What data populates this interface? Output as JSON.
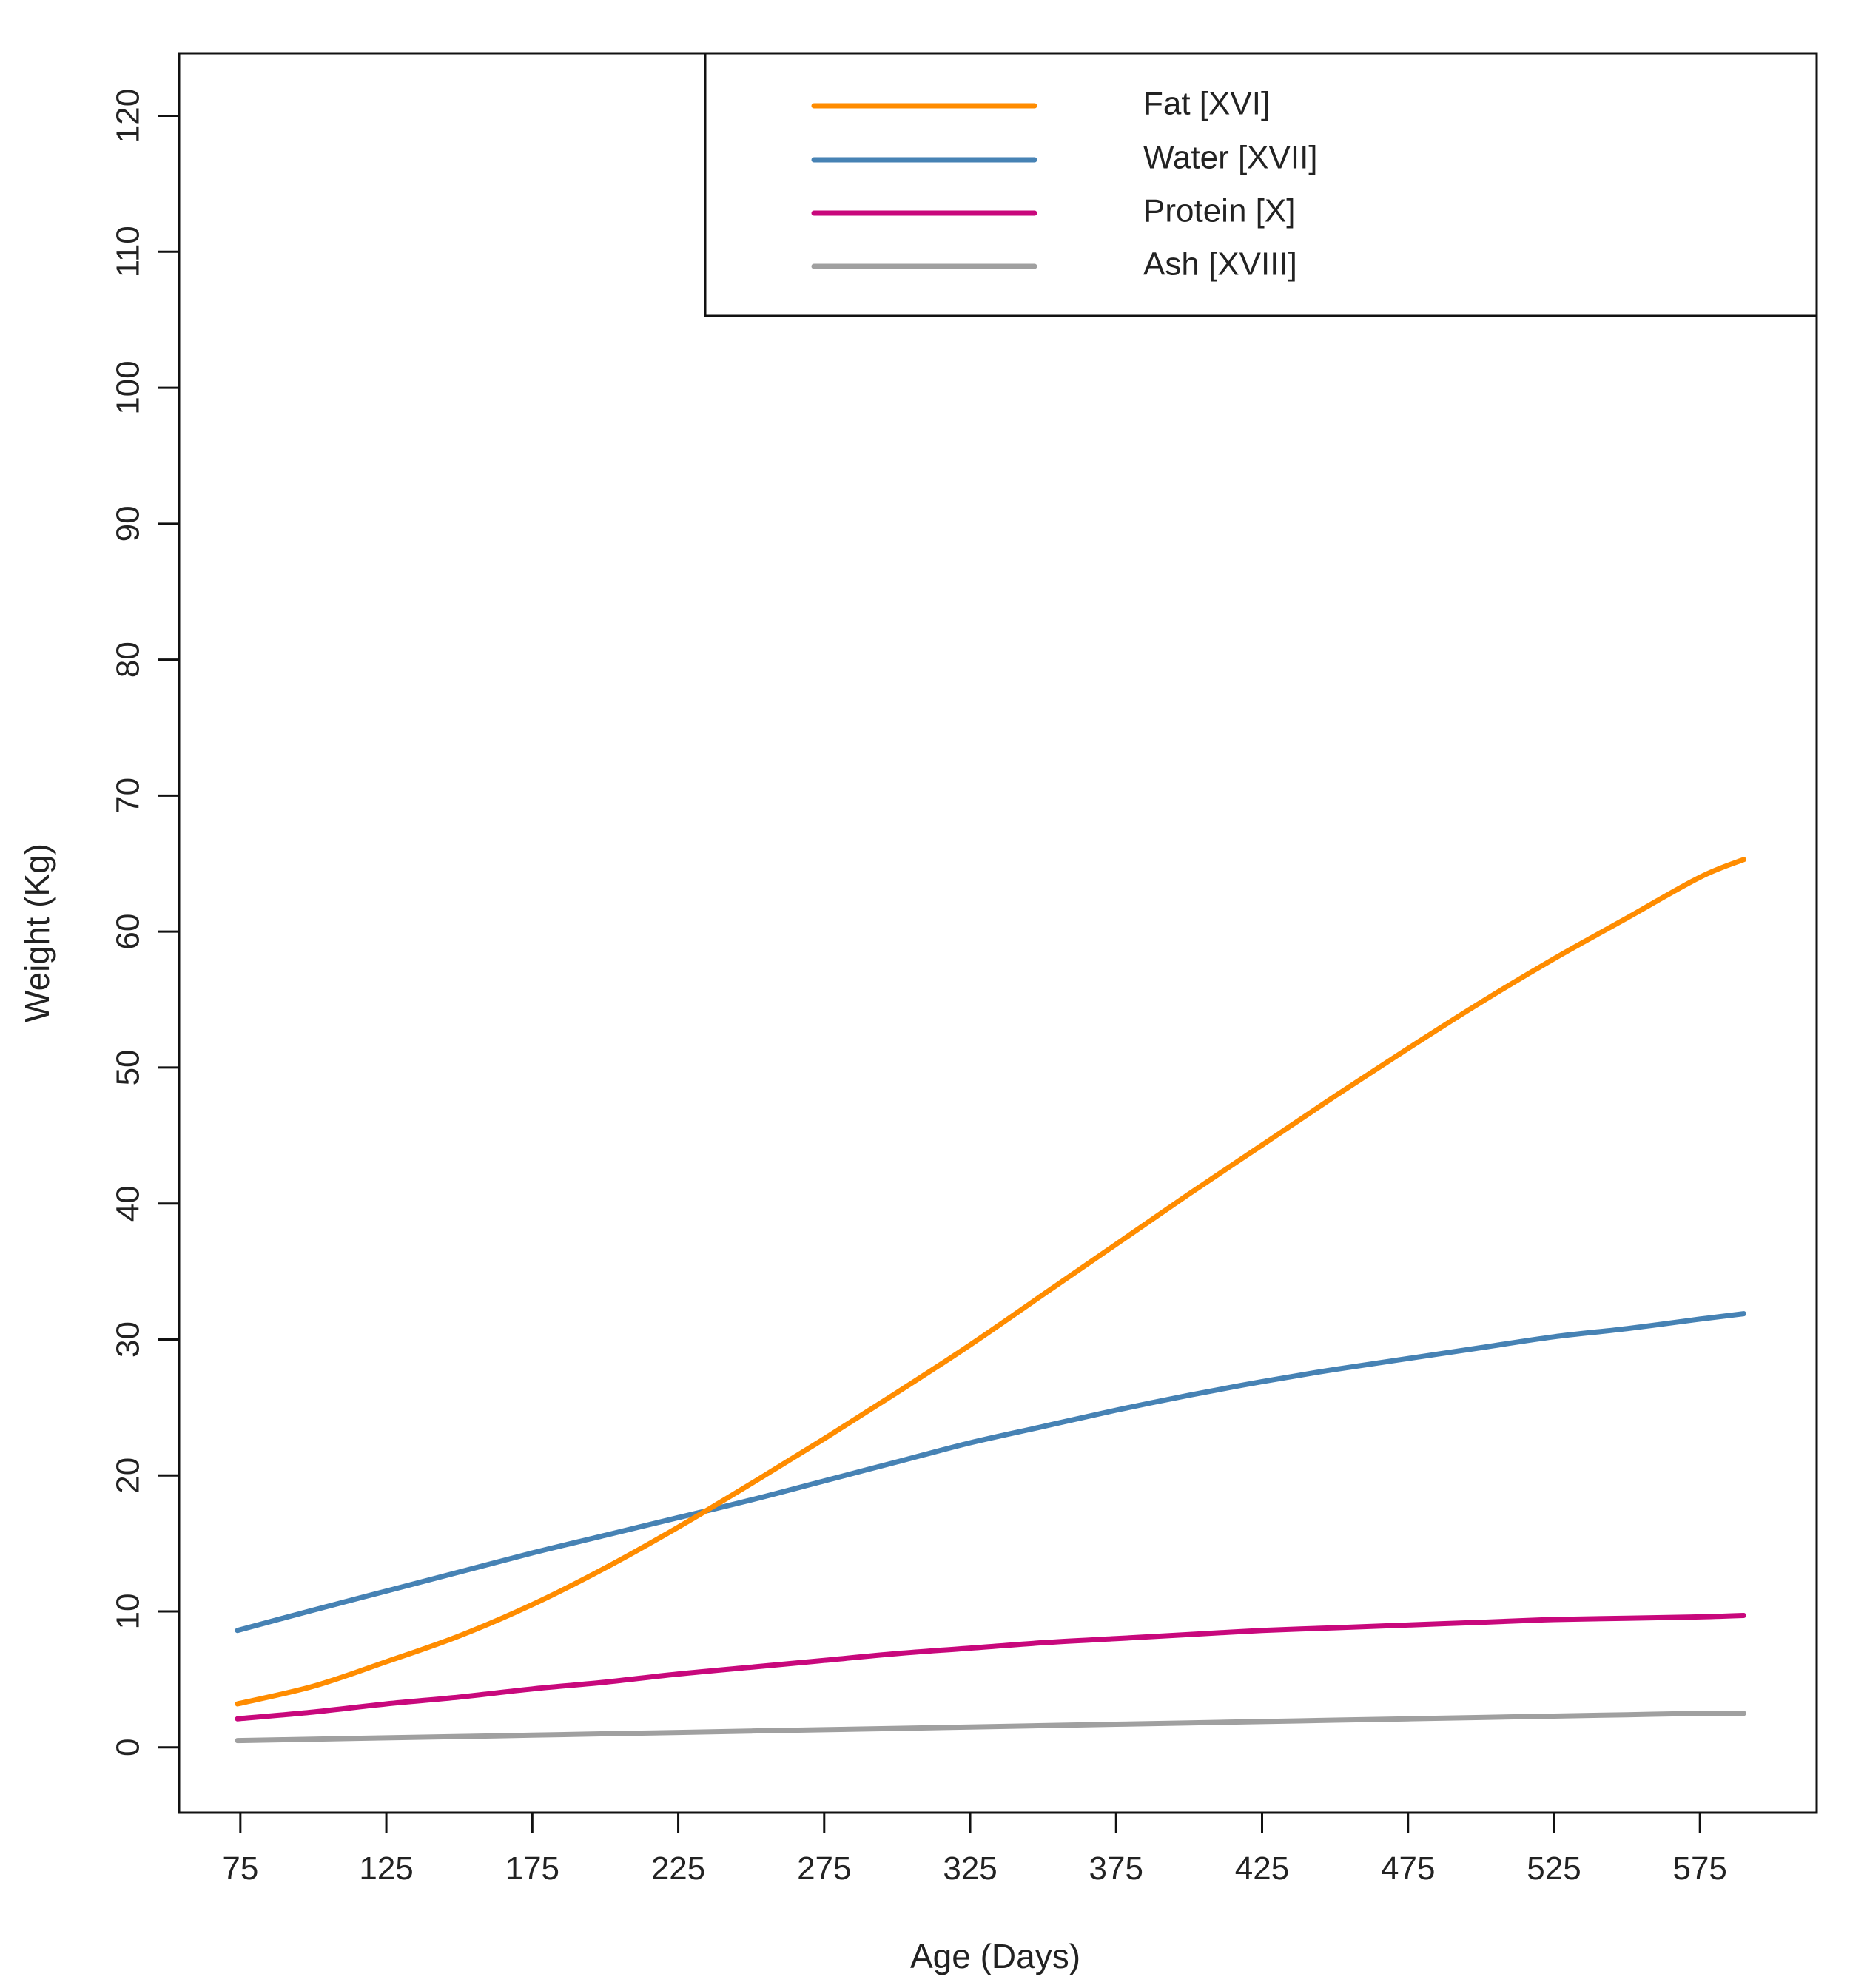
{
  "chart_data": {
    "type": "line",
    "title": "",
    "xlabel": "Age (Days)",
    "ylabel": "Weight (Kg)",
    "xlim": [
      54,
      615
    ],
    "ylim": [
      -4.8,
      124.6
    ],
    "xticks": [
      75,
      125,
      175,
      225,
      275,
      325,
      375,
      425,
      475,
      525,
      575
    ],
    "yticks": [
      0,
      10,
      20,
      30,
      40,
      50,
      60,
      70,
      80,
      90,
      100,
      110,
      120
    ],
    "grid": false,
    "legend_position": "top-right",
    "x": [
      74,
      100,
      125,
      150,
      175,
      200,
      225,
      250,
      275,
      300,
      325,
      350,
      375,
      400,
      425,
      450,
      475,
      500,
      525,
      550,
      575,
      590
    ],
    "series": [
      {
        "name": "Fat [XVI]",
        "color": "#FF8C00",
        "values": [
          3.2,
          4.5,
          6.3,
          8.2,
          10.5,
          13.2,
          16.2,
          19.4,
          22.7,
          26.1,
          29.6,
          33.3,
          37.0,
          40.7,
          44.3,
          47.9,
          51.4,
          54.8,
          58.0,
          61.0,
          64.0,
          65.3
        ]
      },
      {
        "name": "Water [XVII]",
        "color": "#4682B4",
        "values": [
          8.6,
          10.1,
          11.5,
          12.9,
          14.3,
          15.6,
          16.9,
          18.2,
          19.6,
          21.0,
          22.4,
          23.6,
          24.8,
          25.9,
          26.9,
          27.8,
          28.6,
          29.4,
          30.2,
          30.8,
          31.5,
          31.9
        ]
      },
      {
        "name": "Protein [X]",
        "color": "#C8087C",
        "values": [
          2.1,
          2.6,
          3.2,
          3.7,
          4.3,
          4.8,
          5.4,
          5.9,
          6.4,
          6.9,
          7.3,
          7.7,
          8.0,
          8.3,
          8.6,
          8.8,
          9.0,
          9.2,
          9.4,
          9.5,
          9.6,
          9.7
        ]
      },
      {
        "name": "Ash [XVIII]",
        "color": "#A0A0A0",
        "values": [
          0.5,
          0.6,
          0.7,
          0.8,
          0.9,
          1.0,
          1.1,
          1.2,
          1.3,
          1.4,
          1.5,
          1.6,
          1.7,
          1.8,
          1.9,
          2.0,
          2.1,
          2.2,
          2.3,
          2.4,
          2.5,
          2.5
        ]
      }
    ]
  }
}
